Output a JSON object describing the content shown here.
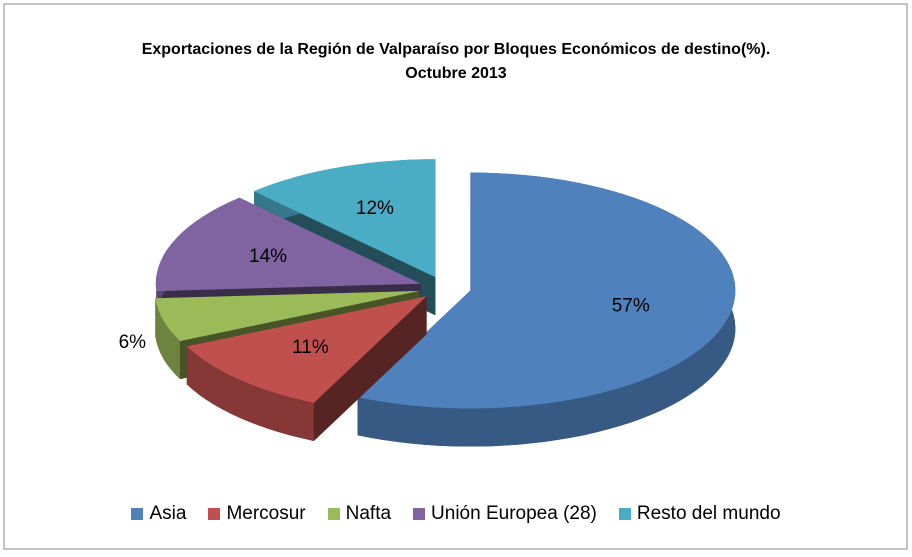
{
  "chart_data": {
    "type": "pie3d",
    "title": "Exportaciones de la Región de Valparaíso por Bloques Económicos de destino(%). Octubre 2013",
    "categories": [
      "Asia",
      "Mercosur",
      "Nafta",
      "Unión Europea (28)",
      "Resto del mundo"
    ],
    "values": [
      57,
      11,
      6,
      14,
      12
    ],
    "value_labels": [
      "57%",
      "11%",
      "6%",
      "14%",
      "12%"
    ],
    "colors": [
      "#4f81bd",
      "#c0504d",
      "#9bbb59",
      "#8064a2",
      "#4bacc6"
    ],
    "legend": "bottom"
  }
}
